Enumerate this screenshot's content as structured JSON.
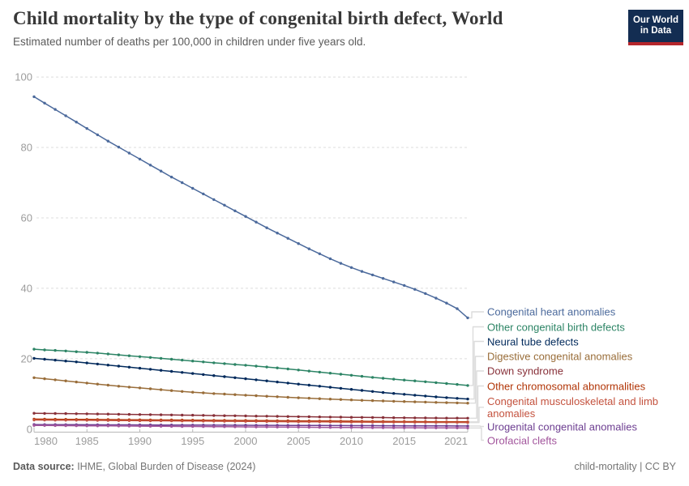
{
  "header": {
    "title": "Child mortality by the type of congenital birth defect, World",
    "subtitle": "Estimated number of deaths per 100,000 in children under five years old."
  },
  "logo": {
    "line1": "Our World",
    "line2": "in Data"
  },
  "footer": {
    "source_label": "Data source:",
    "source_value": " IHME, Global Burden of Disease (2024)",
    "right": "child-mortality | CC BY"
  },
  "chart_data": {
    "type": "line",
    "title": "Child mortality by the type of congenital birth defect, World",
    "xlabel": "",
    "ylabel": "Estimated number of deaths per 100,000 in children under five years old",
    "ylim": [
      0,
      100
    ],
    "grid": "horizontal-dashed",
    "legend_position": "right",
    "grid_color": "#dcdcdc",
    "axis_color": "#b8b8b8",
    "x": [
      1980,
      1981,
      1982,
      1983,
      1984,
      1985,
      1986,
      1987,
      1988,
      1989,
      1990,
      1991,
      1992,
      1993,
      1994,
      1995,
      1996,
      1997,
      1998,
      1999,
      2000,
      2001,
      2002,
      2003,
      2004,
      2005,
      2006,
      2007,
      2008,
      2009,
      2010,
      2011,
      2012,
      2013,
      2014,
      2015,
      2016,
      2017,
      2018,
      2019,
      2020,
      2021
    ],
    "x_tick_labels": [
      1980,
      1985,
      1990,
      1995,
      2000,
      2005,
      2010,
      2015,
      2021
    ],
    "y_ticks": [
      0,
      20,
      40,
      60,
      80,
      100
    ],
    "series": [
      {
        "name": "Congenital heart anomalies",
        "color": "#4C6A9C",
        "values": [
          94.4,
          92.6,
          90.8,
          89.0,
          87.2,
          85.4,
          83.6,
          81.8,
          80.1,
          78.4,
          76.7,
          75.0,
          73.3,
          71.6,
          70.0,
          68.4,
          66.8,
          65.2,
          63.6,
          62.0,
          60.4,
          58.8,
          57.2,
          55.7,
          54.2,
          52.7,
          51.2,
          49.8,
          48.4,
          47.1,
          45.9,
          44.8,
          43.8,
          42.8,
          41.8,
          40.8,
          39.7,
          38.5,
          37.2,
          35.8,
          34.2,
          31.6
        ]
      },
      {
        "name": "Other congenital birth defects",
        "color": "#2C8465",
        "values": [
          22.7,
          22.5,
          22.35,
          22.2,
          22.0,
          21.8,
          21.6,
          21.35,
          21.1,
          20.85,
          20.6,
          20.35,
          20.1,
          19.85,
          19.6,
          19.35,
          19.1,
          18.85,
          18.6,
          18.35,
          18.15,
          17.9,
          17.65,
          17.4,
          17.1,
          16.8,
          16.5,
          16.2,
          15.9,
          15.6,
          15.3,
          15.0,
          14.7,
          14.45,
          14.2,
          13.95,
          13.7,
          13.45,
          13.2,
          12.95,
          12.7,
          12.4
        ]
      },
      {
        "name": "Neural tube defects",
        "color": "#00295B",
        "values": [
          20.1,
          19.85,
          19.6,
          19.35,
          19.1,
          18.8,
          18.5,
          18.2,
          17.9,
          17.6,
          17.3,
          17.0,
          16.7,
          16.4,
          16.1,
          15.8,
          15.5,
          15.2,
          14.9,
          14.6,
          14.3,
          14.0,
          13.7,
          13.4,
          13.1,
          12.8,
          12.5,
          12.2,
          11.9,
          11.6,
          11.3,
          11.0,
          10.7,
          10.4,
          10.15,
          9.9,
          9.65,
          9.4,
          9.15,
          8.95,
          8.75,
          8.55
        ]
      },
      {
        "name": "Digestive congenital anomalies",
        "color": "#996D39",
        "values": [
          14.6,
          14.3,
          14.0,
          13.7,
          13.4,
          13.1,
          12.8,
          12.5,
          12.2,
          11.95,
          11.7,
          11.45,
          11.2,
          10.95,
          10.7,
          10.5,
          10.3,
          10.1,
          9.95,
          9.8,
          9.65,
          9.5,
          9.35,
          9.2,
          9.05,
          8.9,
          8.78,
          8.66,
          8.54,
          8.42,
          8.3,
          8.2,
          8.1,
          8.0,
          7.92,
          7.84,
          7.76,
          7.68,
          7.6,
          7.52,
          7.45,
          7.38
        ]
      },
      {
        "name": "Down syndrome",
        "color": "#883039",
        "values": [
          4.5,
          4.47,
          4.44,
          4.41,
          4.38,
          4.35,
          4.31,
          4.27,
          4.23,
          4.19,
          4.15,
          4.11,
          4.07,
          4.03,
          3.99,
          3.95,
          3.91,
          3.87,
          3.83,
          3.79,
          3.75,
          3.71,
          3.67,
          3.63,
          3.59,
          3.55,
          3.51,
          3.47,
          3.43,
          3.4,
          3.37,
          3.34,
          3.31,
          3.28,
          3.25,
          3.22,
          3.2,
          3.18,
          3.16,
          3.14,
          3.12,
          3.1
        ]
      },
      {
        "name": "Other chromosomal abnormalities",
        "color": "#B13507",
        "values": [
          2.85,
          2.83,
          2.81,
          2.79,
          2.77,
          2.75,
          2.73,
          2.71,
          2.69,
          2.67,
          2.65,
          2.63,
          2.61,
          2.59,
          2.57,
          2.55,
          2.53,
          2.51,
          2.49,
          2.47,
          2.45,
          2.43,
          2.41,
          2.39,
          2.37,
          2.35,
          2.33,
          2.31,
          2.29,
          2.27,
          2.25,
          2.23,
          2.21,
          2.19,
          2.17,
          2.15,
          2.13,
          2.11,
          2.09,
          2.08,
          2.07,
          2.06
        ]
      },
      {
        "name": "Congenital musculoskeletal and limb anomalies",
        "color": "#C4523E",
        "values": [
          2.6,
          2.58,
          2.56,
          2.54,
          2.52,
          2.5,
          2.48,
          2.46,
          2.44,
          2.42,
          2.4,
          2.38,
          2.36,
          2.34,
          2.32,
          2.3,
          2.28,
          2.26,
          2.24,
          2.22,
          2.2,
          2.18,
          2.16,
          2.14,
          2.12,
          2.1,
          2.08,
          2.06,
          2.04,
          2.02,
          2.0,
          1.99,
          1.98,
          1.97,
          1.96,
          1.95,
          1.94,
          1.93,
          1.92,
          1.91,
          1.9,
          1.88
        ]
      },
      {
        "name": "Urogenital congenital anomalies",
        "color": "#6D3E91",
        "values": [
          1.3,
          1.29,
          1.28,
          1.27,
          1.26,
          1.25,
          1.24,
          1.23,
          1.22,
          1.21,
          1.2,
          1.19,
          1.18,
          1.17,
          1.16,
          1.15,
          1.14,
          1.13,
          1.12,
          1.11,
          1.1,
          1.09,
          1.08,
          1.07,
          1.06,
          1.05,
          1.04,
          1.03,
          1.02,
          1.01,
          1.0,
          0.99,
          0.98,
          0.97,
          0.96,
          0.95,
          0.94,
          0.93,
          0.92,
          0.91,
          0.9,
          0.89
        ]
      },
      {
        "name": "Orofacial clefts",
        "color": "#A2559C",
        "values": [
          1.05,
          1.03,
          1.01,
          0.99,
          0.97,
          0.95,
          0.93,
          0.91,
          0.89,
          0.87,
          0.85,
          0.83,
          0.81,
          0.79,
          0.77,
          0.75,
          0.73,
          0.71,
          0.69,
          0.67,
          0.65,
          0.63,
          0.61,
          0.59,
          0.57,
          0.55,
          0.53,
          0.51,
          0.49,
          0.47,
          0.45,
          0.43,
          0.42,
          0.41,
          0.4,
          0.39,
          0.38,
          0.37,
          0.36,
          0.35,
          0.34,
          0.33
        ]
      }
    ]
  }
}
